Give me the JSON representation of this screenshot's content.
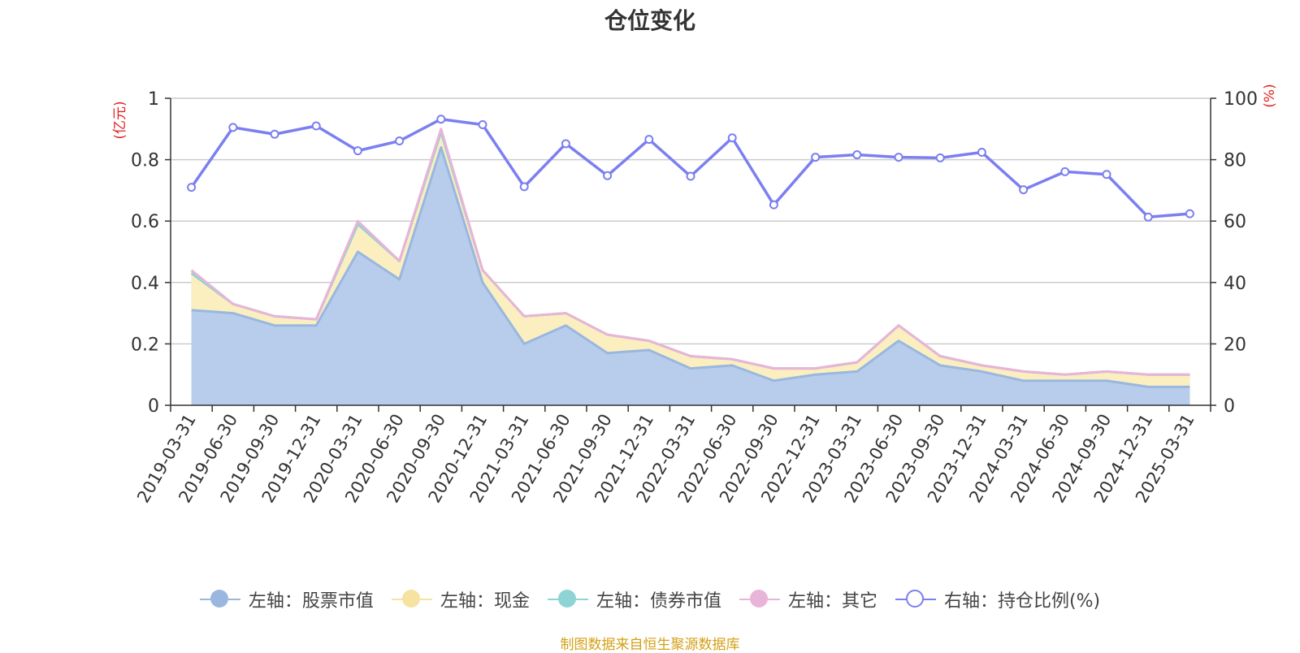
{
  "chart_data": {
    "type": "area",
    "title": "仓位变化",
    "left_axis_unit": "(亿元)",
    "right_axis_unit": "(%)",
    "left_ylim": [
      0,
      1
    ],
    "left_yticks": [
      0,
      0.2,
      0.4,
      0.6,
      0.8,
      1
    ],
    "left_ytick_labels": [
      "0",
      "0.2",
      "0.4",
      "0.6",
      "0.8",
      "1"
    ],
    "right_ylim": [
      0,
      100
    ],
    "right_yticks": [
      0,
      20,
      40,
      60,
      80,
      100
    ],
    "grid": true,
    "legend_position": "bottom",
    "categories": [
      "2019-03-31",
      "2019-06-30",
      "2019-09-30",
      "2019-12-31",
      "2020-03-31",
      "2020-06-30",
      "2020-09-30",
      "2020-12-31",
      "2021-03-31",
      "2021-06-30",
      "2021-09-30",
      "2021-12-31",
      "2022-03-31",
      "2022-06-30",
      "2022-09-30",
      "2022-12-31",
      "2023-03-31",
      "2023-06-30",
      "2023-09-30",
      "2023-12-31",
      "2024-03-31",
      "2024-06-30",
      "2024-09-30",
      "2024-12-31",
      "2025-03-31"
    ],
    "series": [
      {
        "name": "左轴：股票市值",
        "axis": "left",
        "stacked": true,
        "color": "#9ab7e0",
        "fill": "#b7cdeb",
        "values": [
          0.31,
          0.3,
          0.26,
          0.26,
          0.5,
          0.41,
          0.84,
          0.4,
          0.2,
          0.26,
          0.17,
          0.18,
          0.12,
          0.13,
          0.08,
          0.1,
          0.11,
          0.21,
          0.13,
          0.11,
          0.08,
          0.08,
          0.08,
          0.06,
          0.06
        ]
      },
      {
        "name": "左轴：现金",
        "axis": "left",
        "stacked": true,
        "color": "#f6e3a1",
        "fill": "#fbefc0",
        "values": [
          0.12,
          0.03,
          0.03,
          0.02,
          0.09,
          0.06,
          0.05,
          0.04,
          0.09,
          0.04,
          0.06,
          0.03,
          0.04,
          0.02,
          0.04,
          0.02,
          0.03,
          0.05,
          0.03,
          0.02,
          0.03,
          0.02,
          0.03,
          0.04,
          0.04
        ]
      },
      {
        "name": "左轴：债券市值",
        "axis": "left",
        "stacked": true,
        "color": "#8ed4d4",
        "fill": "#8ed4d4",
        "values": [
          0,
          0,
          0,
          0,
          0,
          0,
          0,
          0,
          0,
          0,
          0,
          0,
          0,
          0,
          0,
          0,
          0,
          0,
          0,
          0,
          0,
          0,
          0,
          0,
          0
        ]
      },
      {
        "name": "左轴：其它",
        "axis": "left",
        "stacked": true,
        "color": "#e8b4d8",
        "fill": "#e8b4d8",
        "values": [
          0.01,
          0.0,
          0.0,
          0.0,
          0.01,
          0.0,
          0.01,
          0.0,
          0.0,
          0.0,
          0.0,
          0.0,
          0.0,
          0.0,
          0.0,
          0.0,
          0.0,
          0.0,
          0.0,
          0.0,
          0.0,
          0.0,
          0.0,
          0.0,
          0.0
        ]
      },
      {
        "name": "右轴：持仓比例(%)",
        "axis": "right",
        "stacked": false,
        "color": "#7b7ff0",
        "values": [
          71.0,
          90.5,
          88.3,
          91.0,
          82.9,
          86.1,
          93.2,
          91.4,
          71.2,
          85.2,
          74.8,
          86.6,
          74.6,
          87.1,
          65.3,
          80.8,
          81.6,
          80.8,
          80.6,
          82.4,
          70.2,
          76.1,
          75.2,
          61.3,
          62.4
        ]
      }
    ]
  },
  "source_note": "制图数据来自恒生聚源数据库"
}
